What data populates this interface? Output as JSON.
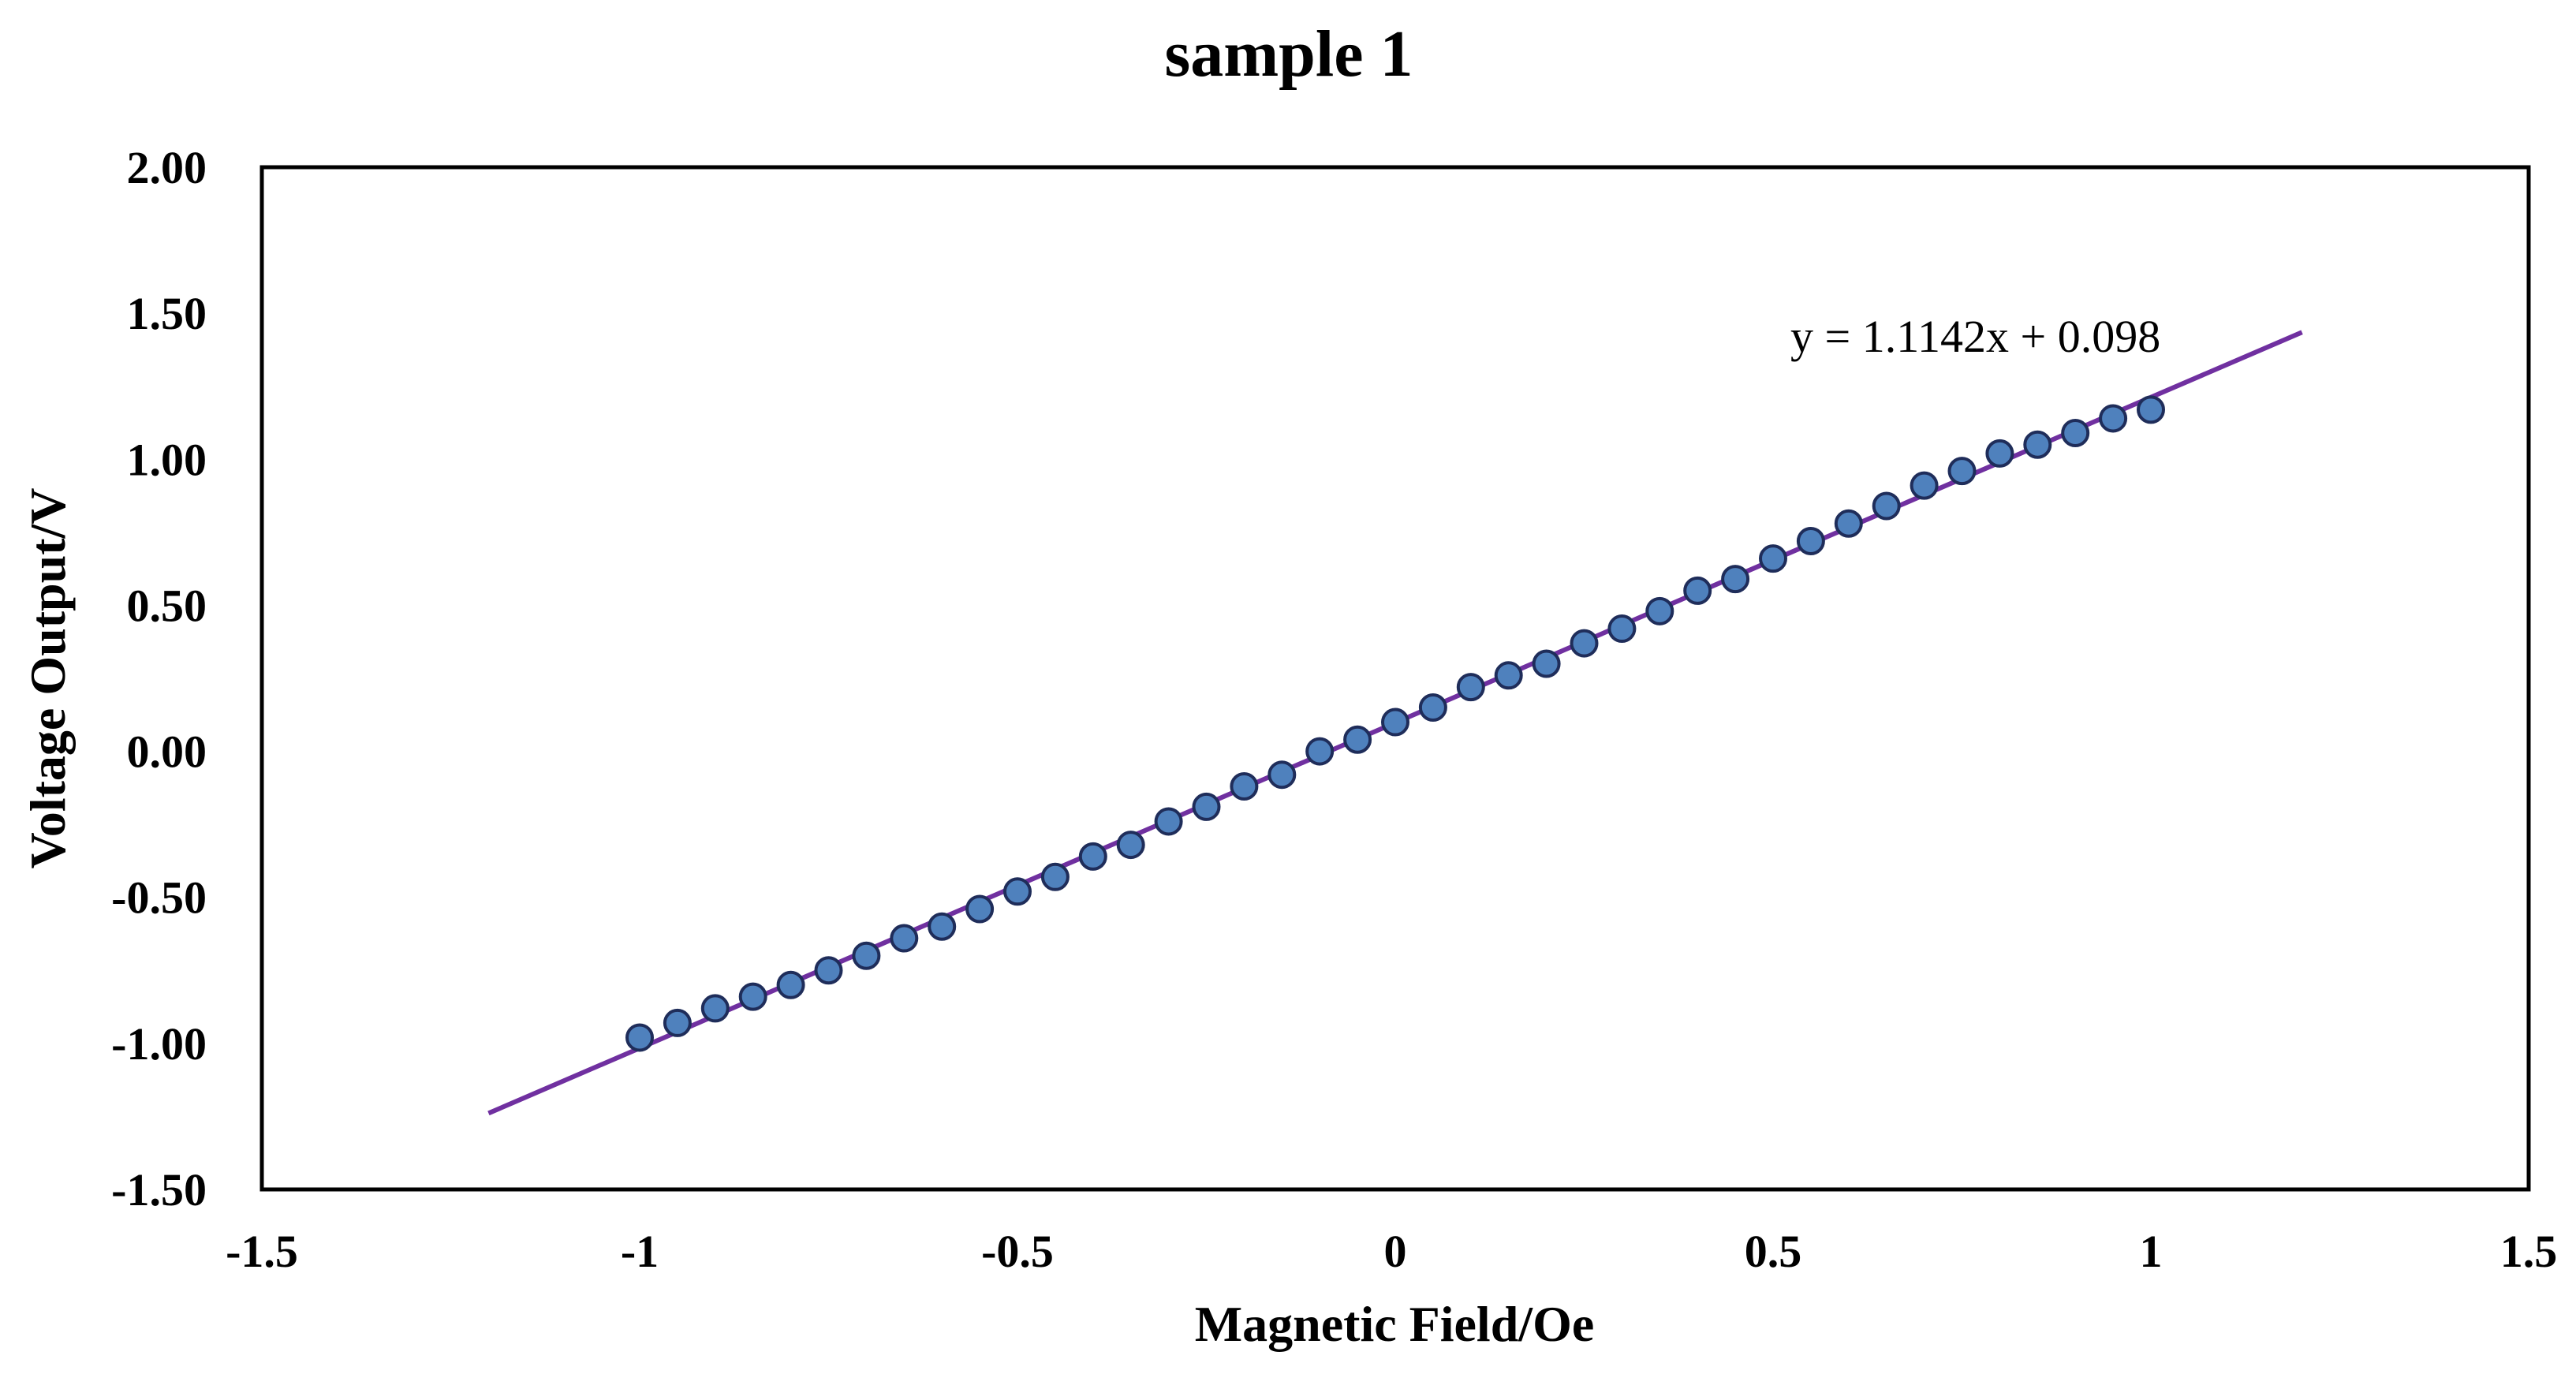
{
  "chart_data": {
    "type": "scatter",
    "title": "sample 1",
    "xlabel": "Magnetic Field/Oe",
    "ylabel": "Voltage Output/V",
    "xlim": [
      -1.5,
      1.5
    ],
    "ylim": [
      -1.5,
      2.0
    ],
    "x_ticks": [
      "-1.5",
      "-1",
      "-0.5",
      "0",
      "0.5",
      "1",
      "1.5"
    ],
    "x_tick_values": [
      -1.5,
      -1,
      -0.5,
      0,
      0.5,
      1,
      1.5
    ],
    "y_ticks": [
      "-1.50",
      "-1.00",
      "-0.50",
      "0.00",
      "0.50",
      "1.00",
      "1.50",
      "2.00"
    ],
    "y_tick_values": [
      -1.5,
      -1.0,
      -0.5,
      0.0,
      0.5,
      1.0,
      1.5,
      2.0
    ],
    "grid": false,
    "series": [
      {
        "marker_color": "#4f81bd",
        "x": [
          -1.0,
          -0.95,
          -0.9,
          -0.85,
          -0.8,
          -0.75,
          -0.7,
          -0.65,
          -0.6,
          -0.55,
          -0.5,
          -0.45,
          -0.4,
          -0.35,
          -0.3,
          -0.25,
          -0.2,
          -0.15,
          -0.1,
          -0.05,
          0.0,
          0.05,
          0.1,
          0.15,
          0.2,
          0.25,
          0.3,
          0.35,
          0.4,
          0.45,
          0.5,
          0.55,
          0.6,
          0.65,
          0.7,
          0.75,
          0.8,
          0.85,
          0.9,
          0.95,
          1.0
        ],
        "y": [
          -0.98,
          -0.93,
          -0.88,
          -0.84,
          -0.8,
          -0.75,
          -0.7,
          -0.64,
          -0.6,
          -0.54,
          -0.48,
          -0.43,
          -0.36,
          -0.32,
          -0.24,
          -0.19,
          -0.12,
          -0.08,
          0.0,
          0.04,
          0.1,
          0.15,
          0.22,
          0.26,
          0.3,
          0.37,
          0.42,
          0.48,
          0.55,
          0.59,
          0.66,
          0.72,
          0.78,
          0.84,
          0.91,
          0.96,
          1.02,
          1.05,
          1.09,
          1.14,
          1.17
        ]
      }
    ],
    "trendline": {
      "slope": 1.1142,
      "intercept": 0.098,
      "x_range": [
        -1.2,
        1.2
      ],
      "color": "#7030a0",
      "equation_label": "y = 1.1142x + 0.098"
    }
  }
}
